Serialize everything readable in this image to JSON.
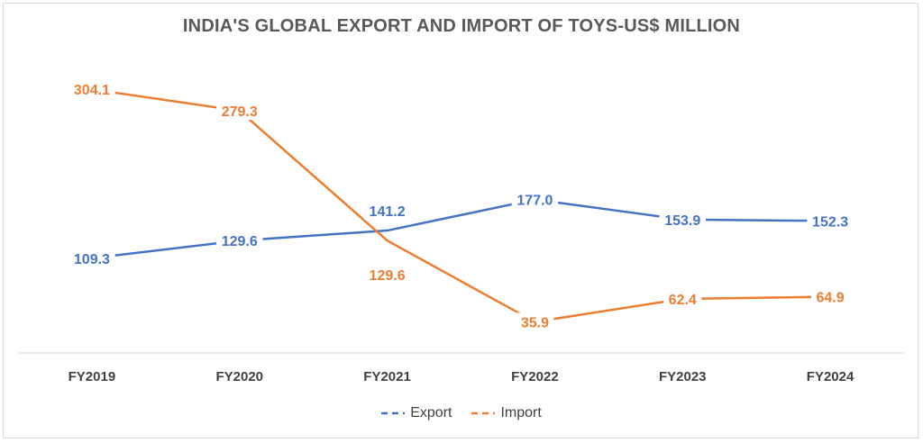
{
  "chart_data": {
    "type": "line",
    "title": "INDIA'S GLOBAL EXPORT AND IMPORT OF TOYS-US$ MILLION",
    "categories": [
      "FY2019",
      "FY2020",
      "FY2021",
      "FY2022",
      "FY2023",
      "FY2024"
    ],
    "series": [
      {
        "name": "Export",
        "color": "#4472C4",
        "values": [
          109.3,
          129.6,
          141.2,
          177.0,
          153.9,
          152.3
        ],
        "labels": [
          "109.3",
          "129.6",
          "141.2",
          "177.0",
          "153.9",
          "152.3"
        ]
      },
      {
        "name": "Import",
        "color": "#ED7D31",
        "values": [
          304.1,
          279.3,
          129.6,
          35.9,
          62.4,
          64.9
        ],
        "labels": [
          "304.1",
          "279.3",
          "129.6",
          "35.9",
          "62.4",
          "64.9"
        ]
      }
    ],
    "xlabel": "",
    "ylabel": "",
    "ylim": [
      0,
      350
    ],
    "grid": false,
    "legend_position": "bottom"
  }
}
